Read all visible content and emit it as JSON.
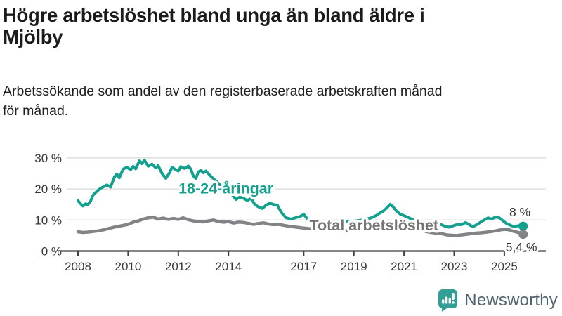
{
  "header": {
    "title_lines": [
      "Högre arbetslöshet bland unga än bland äldre i",
      "Mjölby"
    ],
    "subtitle_lines": [
      "Arbetssökande som andel av den registerbaserade arbetskraften månad",
      "för månad."
    ]
  },
  "footer": {
    "brand": "Newsworthy",
    "brand_icon": "bar-chart-speech-bubble",
    "brand_icon_color": "#339e95",
    "brand_text_color": "#51646f"
  },
  "chart_data": {
    "type": "line",
    "title": "Högre arbetslöshet bland unga än bland äldre i Mjölby",
    "subtitle": "Arbetssökande som andel av den registerbaserade arbetskraften månad för månad.",
    "xlabel": "",
    "ylabel": "",
    "xlim": [
      2007.3,
      2026.3
    ],
    "ylim": [
      0,
      31.5
    ],
    "grid": "horizontal",
    "legend_position": "inline-labels",
    "colors": {
      "young": "#13a08e",
      "total": "#828386",
      "total_label": "#757575",
      "gridline": "#d8d8d8",
      "axis": "#404040",
      "tick_text": "#383838",
      "annotation_text": "#333333",
      "halo": "#ffffff"
    },
    "x_ticks": [
      {
        "value": 2008,
        "label": "2008"
      },
      {
        "value": 2010,
        "label": "2010"
      },
      {
        "value": 2012,
        "label": "2012"
      },
      {
        "value": 2014,
        "label": "2014"
      },
      {
        "value": 2017,
        "label": "2017"
      },
      {
        "value": 2019,
        "label": "2019"
      },
      {
        "value": 2021,
        "label": "2021"
      },
      {
        "value": 2023,
        "label": "2023"
      },
      {
        "value": 2025,
        "label": "2025"
      }
    ],
    "y_ticks": [
      {
        "value": 0,
        "label": "0 %"
      },
      {
        "value": 10,
        "label": "10 %"
      },
      {
        "value": 20,
        "label": "20 %"
      },
      {
        "value": 30,
        "label": "30 %"
      }
    ],
    "series": [
      {
        "name": "18-24-åringar",
        "color": "#13a08e",
        "label_color": "#13a08e",
        "label_pos": [
          2013.9,
          18.6
        ],
        "end_label": "8 %",
        "end_label_pos": [
          2025.62,
          11.2
        ],
        "end_value": 8,
        "points": [
          [
            2008.0,
            16.2
          ],
          [
            2008.1,
            15.3
          ],
          [
            2008.2,
            14.5
          ],
          [
            2008.3,
            15.2
          ],
          [
            2008.4,
            15.0
          ],
          [
            2008.5,
            16.0
          ],
          [
            2008.6,
            18.0
          ],
          [
            2008.75,
            19.2
          ],
          [
            2008.9,
            20.2
          ],
          [
            2009.0,
            20.6
          ],
          [
            2009.15,
            21.3
          ],
          [
            2009.3,
            20.6
          ],
          [
            2009.45,
            23.8
          ],
          [
            2009.55,
            24.8
          ],
          [
            2009.65,
            23.6
          ],
          [
            2009.8,
            26.4
          ],
          [
            2009.95,
            27.0
          ],
          [
            2010.1,
            26.2
          ],
          [
            2010.2,
            27.3
          ],
          [
            2010.3,
            26.5
          ],
          [
            2010.45,
            29.1
          ],
          [
            2010.55,
            28.2
          ],
          [
            2010.65,
            29.3
          ],
          [
            2010.8,
            27.3
          ],
          [
            2010.95,
            28.0
          ],
          [
            2011.1,
            26.8
          ],
          [
            2011.2,
            27.5
          ],
          [
            2011.35,
            25.0
          ],
          [
            2011.5,
            23.4
          ],
          [
            2011.65,
            25.2
          ],
          [
            2011.75,
            27.0
          ],
          [
            2011.9,
            26.2
          ],
          [
            2012.0,
            25.8
          ],
          [
            2012.1,
            27.2
          ],
          [
            2012.25,
            26.6
          ],
          [
            2012.4,
            27.4
          ],
          [
            2012.5,
            26.4
          ],
          [
            2012.6,
            24.2
          ],
          [
            2012.7,
            23.4
          ],
          [
            2012.8,
            25.5
          ],
          [
            2012.9,
            26.0
          ],
          [
            2013.0,
            25.2
          ],
          [
            2013.1,
            25.8
          ],
          [
            2013.25,
            24.5
          ],
          [
            2013.4,
            23.3
          ],
          [
            2013.55,
            22.2
          ],
          [
            2013.7,
            21.0
          ],
          [
            2013.85,
            19.8
          ],
          [
            2014.0,
            18.9
          ],
          [
            2014.15,
            18.1
          ],
          [
            2014.3,
            16.6
          ],
          [
            2014.45,
            17.4
          ],
          [
            2014.6,
            17.0
          ],
          [
            2014.75,
            16.3
          ],
          [
            2014.9,
            17.0
          ],
          [
            2015.05,
            15.0
          ],
          [
            2015.2,
            14.2
          ],
          [
            2015.35,
            13.7
          ],
          [
            2015.5,
            14.8
          ],
          [
            2015.65,
            15.4
          ],
          [
            2015.8,
            15.0
          ],
          [
            2015.95,
            14.8
          ],
          [
            2016.1,
            12.5
          ],
          [
            2016.3,
            10.7
          ],
          [
            2016.5,
            10.3
          ],
          [
            2016.7,
            10.8
          ],
          [
            2016.85,
            11.1
          ],
          [
            2017.0,
            11.8
          ],
          [
            2017.15,
            10.3
          ],
          [
            2017.3,
            9.6
          ],
          [
            2017.5,
            9.4
          ],
          [
            2017.7,
            9.6
          ],
          [
            2017.9,
            9.4
          ],
          [
            2018.1,
            9.6
          ],
          [
            2018.3,
            9.4
          ],
          [
            2018.5,
            9.6
          ],
          [
            2018.7,
            9.4
          ],
          [
            2018.9,
            9.5
          ],
          [
            2019.1,
            9.7
          ],
          [
            2019.3,
            10.0
          ],
          [
            2019.5,
            10.3
          ],
          [
            2019.7,
            10.7
          ],
          [
            2019.9,
            11.5
          ],
          [
            2020.05,
            12.3
          ],
          [
            2020.2,
            13.0
          ],
          [
            2020.35,
            14.2
          ],
          [
            2020.45,
            15.1
          ],
          [
            2020.55,
            14.4
          ],
          [
            2020.7,
            12.9
          ],
          [
            2020.85,
            11.9
          ],
          [
            2021.0,
            11.4
          ],
          [
            2021.2,
            10.7
          ],
          [
            2021.4,
            9.9
          ],
          [
            2021.6,
            9.4
          ],
          [
            2021.8,
            9.0
          ],
          [
            2022.0,
            9.1
          ],
          [
            2022.2,
            8.9
          ],
          [
            2022.4,
            8.8
          ],
          [
            2022.6,
            8.1
          ],
          [
            2022.8,
            7.7
          ],
          [
            2022.95,
            8.1
          ],
          [
            2023.1,
            8.5
          ],
          [
            2023.3,
            8.5
          ],
          [
            2023.45,
            9.2
          ],
          [
            2023.6,
            8.5
          ],
          [
            2023.75,
            7.8
          ],
          [
            2023.9,
            8.5
          ],
          [
            2024.05,
            9.3
          ],
          [
            2024.2,
            10.0
          ],
          [
            2024.35,
            10.7
          ],
          [
            2024.5,
            10.3
          ],
          [
            2024.65,
            11.0
          ],
          [
            2024.8,
            10.7
          ],
          [
            2024.95,
            9.7
          ],
          [
            2025.1,
            8.8
          ],
          [
            2025.25,
            8.3
          ],
          [
            2025.4,
            7.8
          ],
          [
            2025.55,
            8.2
          ],
          [
            2025.75,
            8.0
          ]
        ]
      },
      {
        "name": "Total arbetslöshet",
        "color": "#828386",
        "label_color": "#757575",
        "label_pos": [
          2019.8,
          6.7
        ],
        "end_label": "5,4 %",
        "end_label_pos": [
          2025.68,
          -0.15
        ],
        "end_value": 5.4,
        "points": [
          [
            2008.0,
            6.2
          ],
          [
            2008.2,
            6.0
          ],
          [
            2008.4,
            6.1
          ],
          [
            2008.6,
            6.3
          ],
          [
            2008.8,
            6.5
          ],
          [
            2009.0,
            6.8
          ],
          [
            2009.25,
            7.3
          ],
          [
            2009.5,
            7.8
          ],
          [
            2009.75,
            8.2
          ],
          [
            2010.0,
            8.6
          ],
          [
            2010.2,
            9.3
          ],
          [
            2010.4,
            9.7
          ],
          [
            2010.6,
            10.3
          ],
          [
            2010.8,
            10.7
          ],
          [
            2011.0,
            10.9
          ],
          [
            2011.2,
            10.3
          ],
          [
            2011.4,
            10.6
          ],
          [
            2011.6,
            10.2
          ],
          [
            2011.8,
            10.5
          ],
          [
            2012.0,
            10.2
          ],
          [
            2012.2,
            10.7
          ],
          [
            2012.4,
            10.1
          ],
          [
            2012.6,
            9.7
          ],
          [
            2012.8,
            9.5
          ],
          [
            2013.0,
            9.4
          ],
          [
            2013.2,
            9.7
          ],
          [
            2013.4,
            10.0
          ],
          [
            2013.6,
            9.5
          ],
          [
            2013.8,
            9.3
          ],
          [
            2014.0,
            9.5
          ],
          [
            2014.2,
            9.0
          ],
          [
            2014.4,
            9.3
          ],
          [
            2014.6,
            9.2
          ],
          [
            2014.8,
            8.9
          ],
          [
            2015.0,
            8.6
          ],
          [
            2015.2,
            8.9
          ],
          [
            2015.4,
            9.1
          ],
          [
            2015.6,
            8.7
          ],
          [
            2015.8,
            8.5
          ],
          [
            2016.0,
            8.6
          ],
          [
            2016.2,
            8.3
          ],
          [
            2016.4,
            8.0
          ],
          [
            2016.6,
            7.8
          ],
          [
            2016.8,
            7.6
          ],
          [
            2017.0,
            7.4
          ],
          [
            2017.25,
            7.2
          ],
          [
            2017.5,
            7.1
          ],
          [
            2017.75,
            6.9
          ],
          [
            2018.0,
            6.8
          ],
          [
            2018.25,
            6.7
          ],
          [
            2018.5,
            6.6
          ],
          [
            2018.75,
            6.6
          ],
          [
            2019.0,
            6.5
          ],
          [
            2019.25,
            6.6
          ],
          [
            2019.5,
            6.7
          ],
          [
            2019.75,
            7.0
          ],
          [
            2020.0,
            7.4
          ],
          [
            2020.2,
            7.9
          ],
          [
            2020.4,
            8.3
          ],
          [
            2020.6,
            8.2
          ],
          [
            2020.8,
            8.0
          ],
          [
            2021.0,
            7.7
          ],
          [
            2021.25,
            7.3
          ],
          [
            2021.5,
            6.9
          ],
          [
            2021.75,
            6.5
          ],
          [
            2022.0,
            6.1
          ],
          [
            2022.25,
            5.8
          ],
          [
            2022.5,
            5.6
          ],
          [
            2022.7,
            5.2
          ],
          [
            2022.9,
            5.1
          ],
          [
            2023.1,
            5.0
          ],
          [
            2023.3,
            5.2
          ],
          [
            2023.5,
            5.4
          ],
          [
            2023.7,
            5.6
          ],
          [
            2023.9,
            5.8
          ],
          [
            2024.1,
            5.9
          ],
          [
            2024.3,
            6.1
          ],
          [
            2024.5,
            6.3
          ],
          [
            2024.7,
            6.6
          ],
          [
            2024.9,
            6.9
          ],
          [
            2025.05,
            7.0
          ],
          [
            2025.2,
            6.8
          ],
          [
            2025.35,
            6.4
          ],
          [
            2025.5,
            6.1
          ],
          [
            2025.65,
            5.8
          ],
          [
            2025.75,
            5.4
          ]
        ]
      }
    ]
  }
}
